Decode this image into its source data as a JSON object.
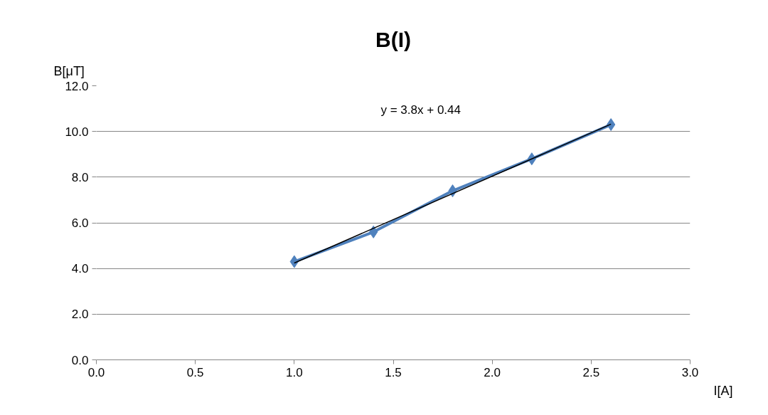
{
  "chart_data": {
    "type": "line",
    "title": "B(I)",
    "xlabel": "I[A]",
    "ylabel": "B[μT]",
    "x": [
      1.0,
      1.4,
      1.8,
      2.2,
      2.6
    ],
    "series": [
      {
        "color": "#4f81bd",
        "values": [
          4.3,
          5.6,
          7.4,
          8.8,
          10.3
        ],
        "marker": "diamond"
      },
      {
        "type": "line",
        "color": "#000000",
        "x": [
          1.0,
          2.6
        ],
        "values": [
          4.24,
          10.32
        ],
        "marker": "none"
      }
    ],
    "xlim": [
      0,
      3
    ],
    "xticks": [
      {
        "value": 0,
        "label": "0.0"
      },
      0.5,
      {
        "value": 1,
        "label": "1.0"
      },
      1.5,
      {
        "value": 2,
        "label": "2.0"
      },
      2.5,
      {
        "value": 3,
        "label": "3.0"
      }
    ],
    "ylim": [
      0,
      12
    ],
    "yticks": [
      {
        "value": 0,
        "label": "0.0"
      },
      {
        "value": 2,
        "label": "2.0"
      },
      {
        "value": 4,
        "label": "4.0"
      },
      {
        "value": 6,
        "label": "6.0"
      },
      {
        "value": 8,
        "label": "8.0"
      },
      {
        "value": 10,
        "label": "10.0"
      },
      {
        "value": 12,
        "label": "12.0"
      }
    ],
    "annotations": [
      "y = 3.8x + 0.44"
    ],
    "grid": "y"
  }
}
